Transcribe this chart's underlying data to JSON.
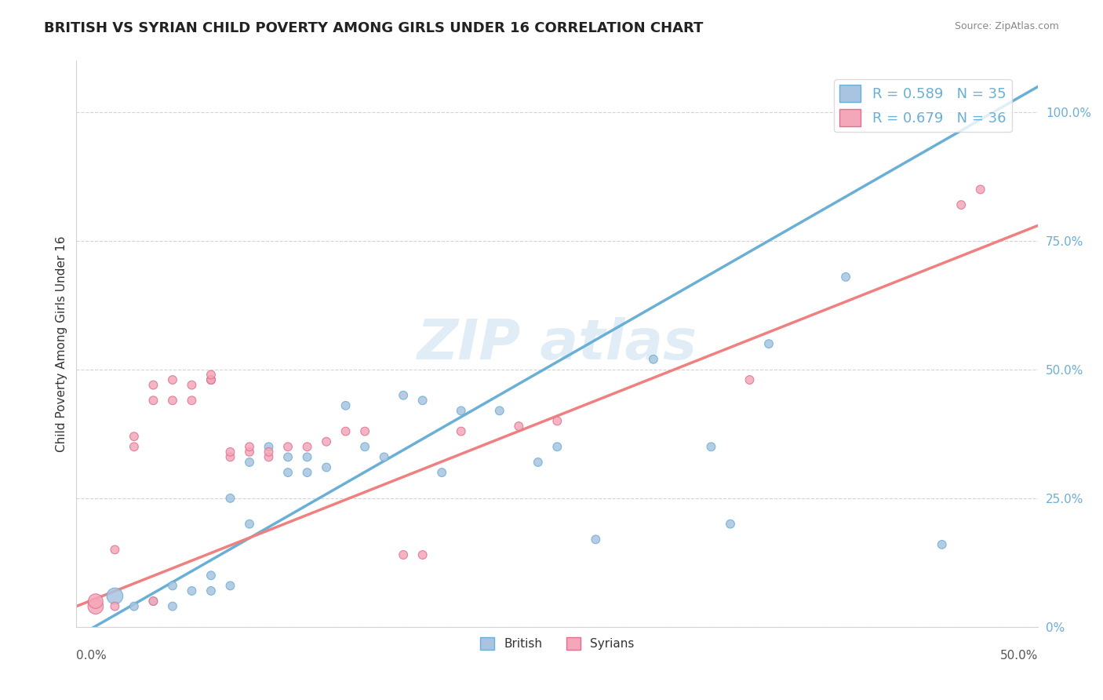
{
  "title": "BRITISH VS SYRIAN CHILD POVERTY AMONG GIRLS UNDER 16 CORRELATION CHART",
  "source": "Source: ZipAtlas.com",
  "ylabel": "Child Poverty Among Girls Under 16",
  "xlim": [
    0.0,
    0.5
  ],
  "ylim": [
    0.0,
    1.1
  ],
  "yticks": [
    0.0,
    0.25,
    0.5,
    0.75,
    1.0
  ],
  "ytick_labels": [
    "0%",
    "25.0%",
    "50.0%",
    "75.0%",
    "100.0%"
  ],
  "legend_r_british": "R = 0.589",
  "legend_n_british": "N = 35",
  "legend_r_syrian": "R = 0.679",
  "legend_n_syrian": "N = 36",
  "british_color": "#a8c4e0",
  "syrian_color": "#f4a7b9",
  "british_line_color": "#6aafd6",
  "syrian_line_color": "#f08080",
  "syrian_edge_color": "#e07090",
  "title_fontsize": 13,
  "british_scatter": [
    [
      0.02,
      0.06
    ],
    [
      0.03,
      0.04
    ],
    [
      0.04,
      0.05
    ],
    [
      0.05,
      0.04
    ],
    [
      0.05,
      0.08
    ],
    [
      0.06,
      0.07
    ],
    [
      0.07,
      0.07
    ],
    [
      0.07,
      0.1
    ],
    [
      0.08,
      0.08
    ],
    [
      0.08,
      0.25
    ],
    [
      0.09,
      0.2
    ],
    [
      0.09,
      0.32
    ],
    [
      0.1,
      0.35
    ],
    [
      0.11,
      0.3
    ],
    [
      0.11,
      0.33
    ],
    [
      0.12,
      0.33
    ],
    [
      0.12,
      0.3
    ],
    [
      0.13,
      0.31
    ],
    [
      0.14,
      0.43
    ],
    [
      0.15,
      0.35
    ],
    [
      0.16,
      0.33
    ],
    [
      0.17,
      0.45
    ],
    [
      0.18,
      0.44
    ],
    [
      0.19,
      0.3
    ],
    [
      0.2,
      0.42
    ],
    [
      0.22,
      0.42
    ],
    [
      0.24,
      0.32
    ],
    [
      0.25,
      0.35
    ],
    [
      0.27,
      0.17
    ],
    [
      0.3,
      0.52
    ],
    [
      0.33,
      0.35
    ],
    [
      0.34,
      0.2
    ],
    [
      0.36,
      0.55
    ],
    [
      0.4,
      0.68
    ],
    [
      0.45,
      0.16
    ]
  ],
  "syrian_scatter": [
    [
      0.01,
      0.04
    ],
    [
      0.01,
      0.05
    ],
    [
      0.02,
      0.04
    ],
    [
      0.02,
      0.15
    ],
    [
      0.03,
      0.35
    ],
    [
      0.03,
      0.37
    ],
    [
      0.04,
      0.05
    ],
    [
      0.04,
      0.44
    ],
    [
      0.04,
      0.47
    ],
    [
      0.05,
      0.44
    ],
    [
      0.05,
      0.48
    ],
    [
      0.06,
      0.44
    ],
    [
      0.06,
      0.47
    ],
    [
      0.07,
      0.48
    ],
    [
      0.07,
      0.48
    ],
    [
      0.07,
      0.48
    ],
    [
      0.07,
      0.49
    ],
    [
      0.08,
      0.33
    ],
    [
      0.08,
      0.34
    ],
    [
      0.09,
      0.34
    ],
    [
      0.09,
      0.35
    ],
    [
      0.1,
      0.33
    ],
    [
      0.1,
      0.34
    ],
    [
      0.11,
      0.35
    ],
    [
      0.12,
      0.35
    ],
    [
      0.13,
      0.36
    ],
    [
      0.14,
      0.38
    ],
    [
      0.15,
      0.38
    ],
    [
      0.17,
      0.14
    ],
    [
      0.18,
      0.14
    ],
    [
      0.2,
      0.38
    ],
    [
      0.23,
      0.39
    ],
    [
      0.25,
      0.4
    ],
    [
      0.35,
      0.48
    ],
    [
      0.46,
      0.82
    ],
    [
      0.47,
      0.85
    ]
  ],
  "british_trendline": [
    [
      0.0,
      -0.02
    ],
    [
      0.5,
      1.05
    ]
  ],
  "syrian_trendline": [
    [
      0.0,
      0.04
    ],
    [
      0.5,
      0.78
    ]
  ]
}
